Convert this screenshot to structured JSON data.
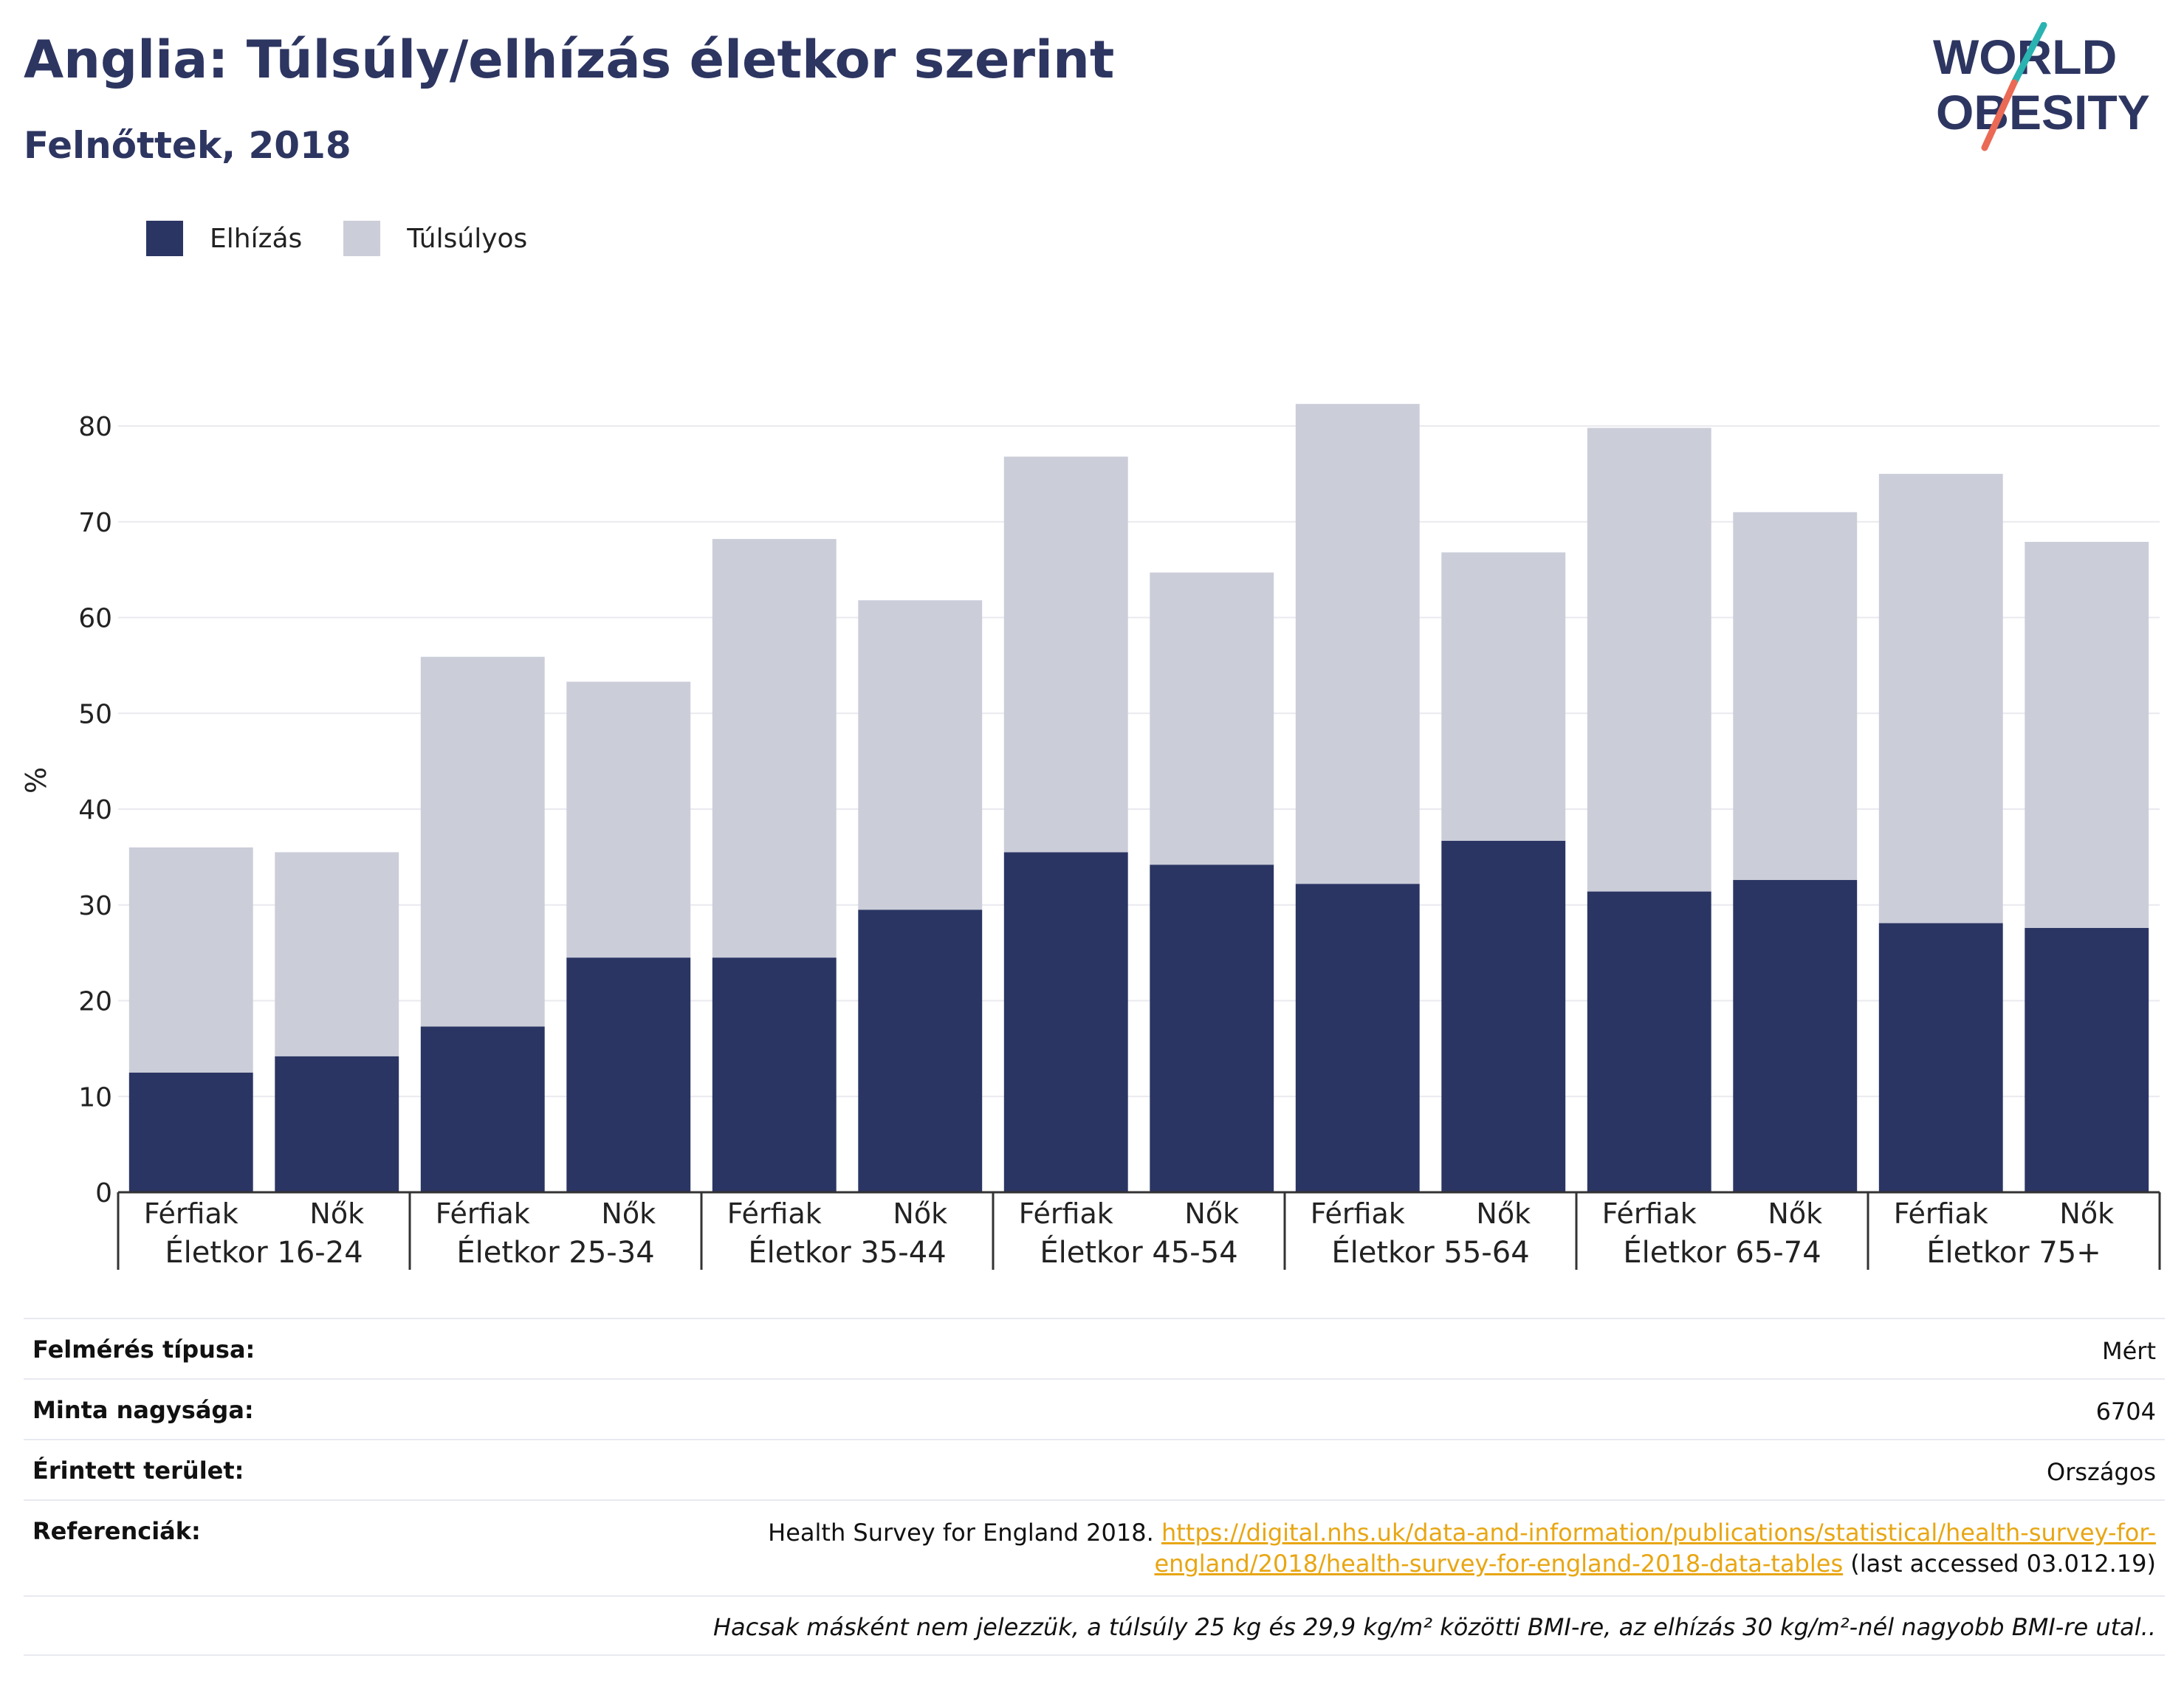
{
  "header": {
    "title": "Anglia: Túlsúly/elhízás életkor szerint",
    "subtitle": "Felnőttek, 2018"
  },
  "logo": {
    "line1": "WORLD",
    "line2": "OBESITY"
  },
  "legend": {
    "items": [
      {
        "label": "Elhízás",
        "color": "#2a3563"
      },
      {
        "label": "Túlsúlyos",
        "color": "#cbcdd9"
      }
    ]
  },
  "chart_data": {
    "type": "bar",
    "stacked": true,
    "ylabel": "%",
    "ylim": [
      0,
      80
    ],
    "yticks": [
      0,
      10,
      20,
      30,
      40,
      50,
      60,
      70,
      80
    ],
    "grid": true,
    "legend_position": "top-left",
    "groups": [
      "Életkor 16-24",
      "Életkor 25-34",
      "Életkor 35-44",
      "Életkor 45-54",
      "Életkor 55-64",
      "Életkor 65-74",
      "Életkor 75+"
    ],
    "subcategories": [
      "Férfiak",
      "Nők"
    ],
    "series": [
      {
        "name": "Elhízás",
        "color": "#2a3563",
        "values": [
          12.5,
          14.2,
          17.3,
          24.5,
          24.5,
          29.5,
          35.5,
          34.2,
          32.2,
          36.7,
          31.4,
          32.6,
          28.1,
          27.6
        ]
      },
      {
        "name": "Túlsúlyos",
        "color": "#cbcdd9",
        "values": [
          23.5,
          21.3,
          38.6,
          28.8,
          43.7,
          32.3,
          41.3,
          30.5,
          50.1,
          30.1,
          48.4,
          38.4,
          46.9,
          40.3
        ]
      }
    ]
  },
  "info": {
    "rows": [
      {
        "label": "Felmérés típusa:",
        "value": "Mért"
      },
      {
        "label": "Minta nagysága:",
        "value": "6704"
      },
      {
        "label": "Érintett terület:",
        "value": "Országos"
      }
    ],
    "references": {
      "label": "Referenciák:",
      "prefix": "Health Survey for England 2018.",
      "link_line1": "https://digital.nhs.uk/data-and-information/publications/statistical/health-survey-for-",
      "link_line2": "england/2018/health-survey-for-england-2018-data-tables",
      "suffix": "(last accessed 03.012.19)"
    },
    "note": "Hacsak másként nem jelezzük, a túlsúly 25 kg és 29,9 kg/m² közötti BMI-re, az elhízás 30 kg/m²-nél nagyobb BMI-re utal.."
  }
}
